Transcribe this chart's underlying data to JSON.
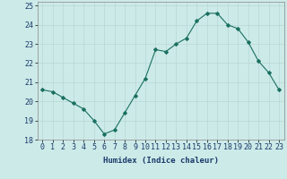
{
  "x": [
    0,
    1,
    2,
    3,
    4,
    5,
    6,
    7,
    8,
    9,
    10,
    11,
    12,
    13,
    14,
    15,
    16,
    17,
    18,
    19,
    20,
    21,
    22,
    23
  ],
  "y": [
    20.6,
    20.5,
    20.2,
    19.9,
    19.6,
    19.0,
    18.3,
    18.5,
    19.4,
    20.3,
    21.2,
    22.7,
    22.6,
    23.0,
    23.3,
    24.2,
    24.6,
    24.6,
    24.0,
    23.8,
    23.1,
    22.1,
    21.5,
    20.6
  ],
  "xlabel": "Humidex (Indice chaleur)",
  "ylim": [
    18,
    25.2
  ],
  "yticks": [
    18,
    19,
    20,
    21,
    22,
    23,
    24,
    25
  ],
  "xlim": [
    -0.5,
    23.5
  ],
  "line_color": "#1a7060",
  "marker": "D",
  "bg_color": "#cceae8",
  "grid_color": "#b8d8d4",
  "label_fontsize": 6.5,
  "tick_fontsize": 6.0
}
